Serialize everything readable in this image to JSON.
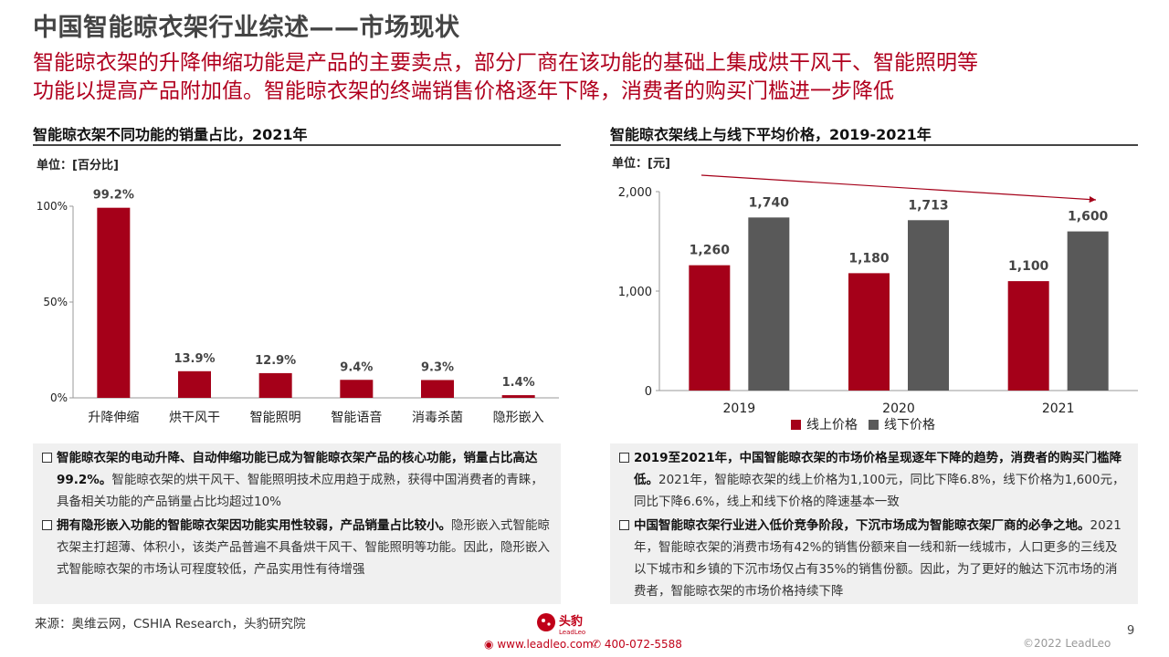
{
  "page": {
    "title": "中国智能晾衣架行业综述——市场现状",
    "subtitle_lines": [
      "智能晾衣架的升降伸缩功能是产品的主要卖点，部分厂商在该功能的基础上集成烘干风干、智能照明等",
      "功能以提高产品附加值。智能晾衣架的终端销售价格逐年下降，消费者的购买门槛进一步降低"
    ],
    "source": "来源：奥维云网，CSHIA Research，头豹研究院",
    "page_number": "9",
    "copyright": "©2022 LeadLeo",
    "website": "www.leadleo.com",
    "phone": "400-072-5588",
    "logo_text": "头豹",
    "logo_subtext": "LeadLeo"
  },
  "colors": {
    "primary": "#a50019",
    "secondary": "#595959",
    "accent": "#c00018"
  },
  "left_panel": {
    "title": "智能晾衣架不同功能的销量占比，2021年",
    "unit": "单位：[百分比]",
    "bullets": [
      {
        "bold": "智能晾衣架的电动升降、自动伸缩功能已成为智能晾衣架产品的核心功能，销量占比高达99.2%。",
        "text": "智能晾衣架的烘干风干、智能照明技术应用趋于成熟，获得中国消费者的青睐，具备相关功能的产品销量占比均超过10%"
      },
      {
        "bold": "拥有隐形嵌入功能的智能晾衣架因功能实用性较弱，产品销量占比较小。",
        "text": "隐形嵌入式智能晾衣架主打超薄、体积小，该类产品普遍不具备烘干风干、智能照明等功能。因此，隐形嵌入式智能晾衣架的市场认可程度较低，产品实用性有待增强"
      }
    ]
  },
  "right_panel": {
    "title": "智能晾衣架线上与线下平均价格，2019-2021年",
    "unit": "单位：[元]",
    "legend": [
      "线上价格",
      "线下价格"
    ],
    "bullets": [
      {
        "bold": "2019至2021年，中国智能晾衣架的市场价格呈现逐年下降的趋势，消费者的购买门槛降低。",
        "text": "2021年，智能晾衣架的线上价格为1,100元，同比下降6.8%，线下价格为1,600元，同比下降6.6%，线上和线下价格的降速基本一致"
      },
      {
        "bold": "中国智能晾衣架行业进入低价竞争阶段，下沉市场成为智能晾衣架厂商的必争之地。",
        "text": "2021年，智能晾衣架的消费市场有42%的销售份额来自一线和新一线城市，人口更多的三线及以下城市和乡镇的下沉市场仅占有35%的销售份额。因此，为了更好的触达下沉市场的消费者，智能晾衣架的市场价格持续下降"
      }
    ]
  },
  "chart_data": [
    {
      "type": "bar",
      "categories": [
        "升降伸缩",
        "烘干风干",
        "智能照明",
        "智能语音",
        "消毒杀菌",
        "隐形嵌入"
      ],
      "values": [
        99.2,
        13.9,
        12.9,
        9.4,
        9.3,
        1.4
      ],
      "value_labels": [
        "99.2%",
        "13.9%",
        "12.9%",
        "9.4%",
        "9.3%",
        "1.4%"
      ],
      "yticks": [
        "100%",
        "50%",
        "0%"
      ],
      "ylim": [
        0,
        100
      ],
      "color": "#a50019"
    },
    {
      "type": "bar",
      "categories": [
        "2019",
        "2020",
        "2021"
      ],
      "series": [
        {
          "name": "线上价格",
          "values": [
            1260,
            1180,
            1100
          ],
          "labels": [
            "1,260",
            "1,180",
            "1,100"
          ],
          "color": "#a50019"
        },
        {
          "name": "线下价格",
          "values": [
            1740,
            1713,
            1600
          ],
          "labels": [
            "1,740",
            "1,713",
            "1,600"
          ],
          "color": "#595959"
        }
      ],
      "yticks": [
        "2,000",
        "1,000",
        "0"
      ],
      "ylim": [
        0,
        2000
      ],
      "legend_position": "bottom"
    }
  ]
}
